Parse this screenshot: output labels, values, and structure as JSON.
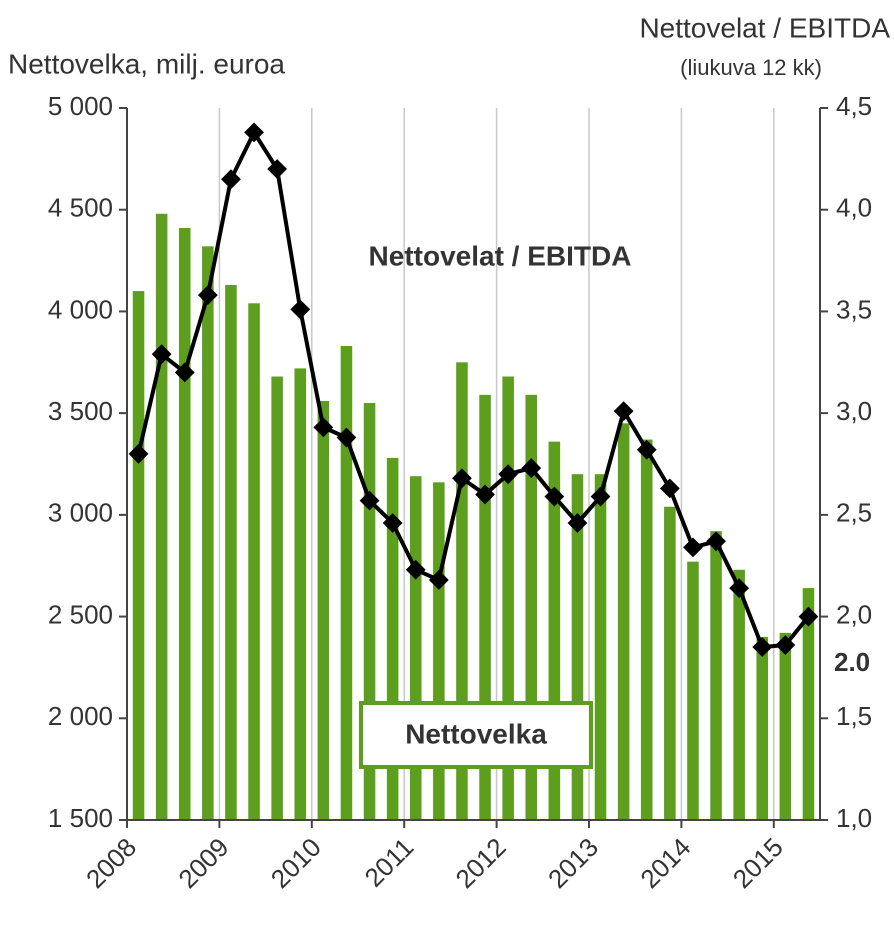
{
  "chart_data": {
    "type": "bar-line",
    "y_label": "Nettovelka, milj. euroa",
    "y2_label": "Nettovelat / EBITDA",
    "y2_sublabel": "(liukuva 12 kk)",
    "annotations": [
      "Nettovelat / EBITDA",
      "Nettovelka",
      "2.0"
    ],
    "x": [
      2008.125,
      2008.375,
      2008.625,
      2008.875,
      2009.125,
      2009.375,
      2009.625,
      2009.875,
      2010.125,
      2010.375,
      2010.625,
      2010.875,
      2011.125,
      2011.375,
      2011.625,
      2011.875,
      2012.125,
      2012.375,
      2012.625,
      2012.875,
      2013.125,
      2013.375,
      2013.625,
      2013.875,
      2014.125,
      2014.375,
      2014.625,
      2014.875,
      2015.125,
      2015.375
    ],
    "series": [
      {
        "name": "Nettovelka",
        "type": "bar",
        "color": "#5e9e1f",
        "values": [
          4100,
          4480,
          4410,
          4320,
          4130,
          4040,
          3680,
          3720,
          3560,
          3830,
          3550,
          3280,
          3190,
          3160,
          3750,
          3590,
          3680,
          3590,
          3360,
          3200,
          3200,
          3450,
          3370,
          3040,
          2770,
          2920,
          2730,
          2400,
          2420,
          2640
        ]
      },
      {
        "name": "Nettovelat / EBITDA",
        "type": "line",
        "axis": "y2",
        "color": "#000000",
        "values": [
          2.8,
          3.29,
          3.2,
          3.58,
          4.15,
          4.38,
          4.2,
          3.51,
          2.93,
          2.88,
          2.57,
          2.46,
          2.23,
          2.18,
          2.68,
          2.6,
          2.7,
          2.73,
          2.59,
          2.46,
          2.59,
          3.01,
          2.82,
          2.63,
          2.34,
          2.37,
          2.14,
          1.85,
          1.86,
          2.0
        ]
      }
    ],
    "xlim": [
      2008,
      2015.5
    ],
    "xticks": [
      2008,
      2009,
      2010,
      2011,
      2012,
      2013,
      2014,
      2015
    ],
    "ylim": [
      1500,
      5000
    ],
    "yticks": [
      {
        "value": 1500,
        "label": "1 500"
      },
      {
        "value": 2000,
        "label": "2 000"
      },
      {
        "value": 2500,
        "label": "2 500"
      },
      {
        "value": 3000,
        "label": "3 000"
      },
      {
        "value": 3500,
        "label": "3 500"
      },
      {
        "value": 4000,
        "label": "4 000"
      },
      {
        "value": 4500,
        "label": "4 500"
      },
      {
        "value": 5000,
        "label": "5 000"
      }
    ],
    "y2lim": [
      1.0,
      4.5
    ],
    "y2ticks": [
      {
        "value": 1.0,
        "label": "1,0"
      },
      {
        "value": 1.5,
        "label": "1,5"
      },
      {
        "value": 2.0,
        "label": "2,0"
      },
      {
        "value": 2.5,
        "label": "2,5"
      },
      {
        "value": 3.0,
        "label": "3,0"
      },
      {
        "value": 3.5,
        "label": "3,5"
      },
      {
        "value": 4.0,
        "label": "4,0"
      },
      {
        "value": 4.5,
        "label": "4,5"
      }
    ],
    "grid": "x"
  }
}
